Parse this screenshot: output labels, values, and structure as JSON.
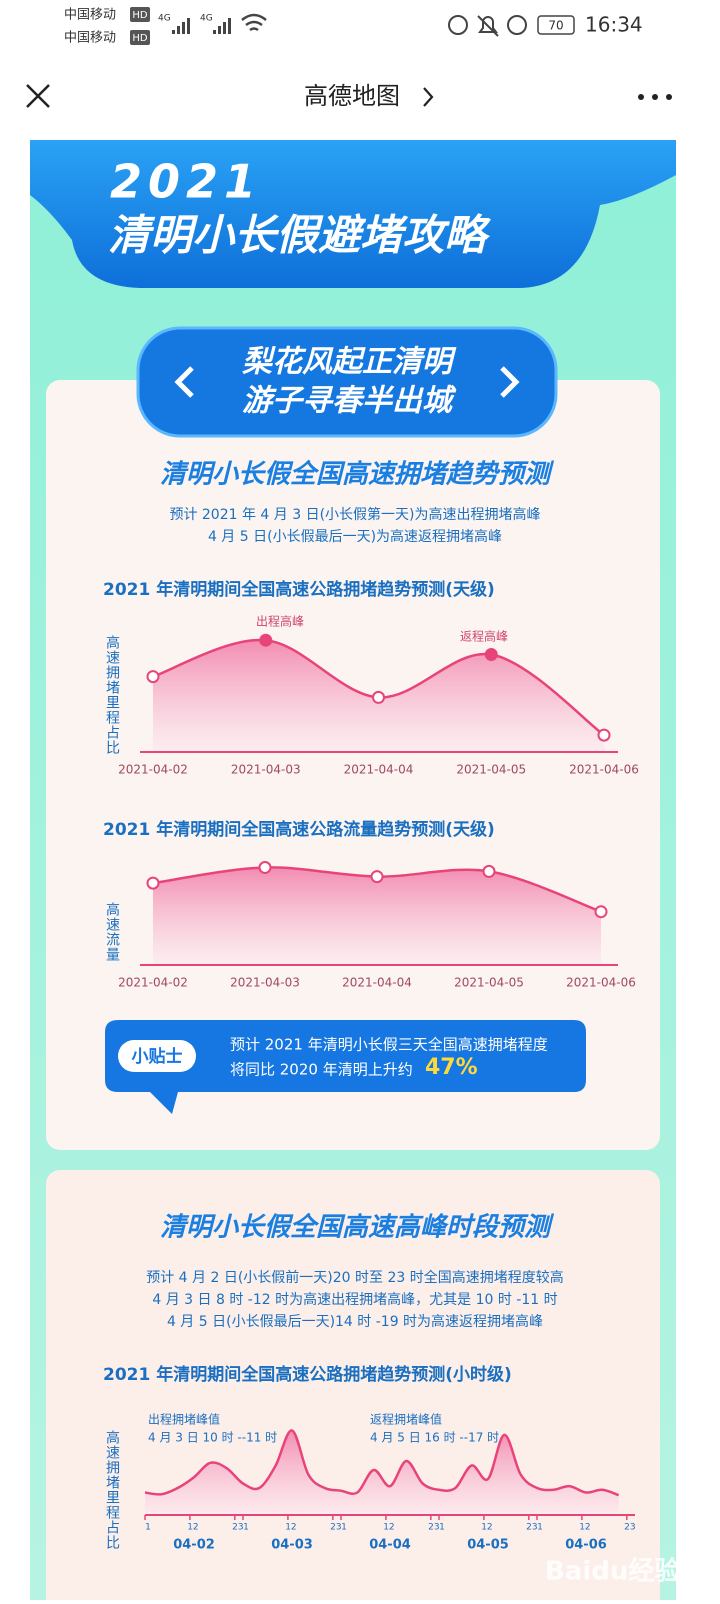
{
  "status_bar": {
    "carrier_1": "中国移动",
    "carrier_2": "中国移动",
    "hd": "HD",
    "network_1": "4G",
    "network_2": "4G",
    "battery": "70",
    "time": "16:34"
  },
  "nav": {
    "title": "高德地图"
  },
  "banner": {
    "year": "2021",
    "title": "清明小长假避堵攻略"
  },
  "slogan": [
    "梨花风起正清明",
    "游子寻春半出城"
  ],
  "section_1": {
    "heading": "清明小长假全国高速拥堵趋势预测",
    "lines": [
      "预计 2021 年 4 月 3 日(小长假第一天)为高速出程拥堵高峰",
      "4 月 5 日(小长假最后一天)为高速返程拥堵高峰"
    ],
    "charts": [
      {
        "type": "line",
        "title": "2021 年清明期间全国高速公路拥堵趋势预测(天级)",
        "ylabel": "高速拥堵里程占比",
        "categories": [
          "2021-04-02",
          "2021-04-03",
          "2021-04-04",
          "2021-04-05",
          "2021-04-06"
        ],
        "values": [
          58,
          86,
          42,
          75,
          13
        ],
        "ylim": [
          0,
          100
        ],
        "annotations": [
          "出程高峰",
          "返程高峰"
        ],
        "color": "#e8447a"
      },
      {
        "type": "line",
        "title": "2021 年清明期间全国高速公路流量趋势预测(天级)",
        "ylabel": "高速流量",
        "categories": [
          "2021-04-02",
          "2021-04-03",
          "2021-04-04",
          "2021-04-05",
          "2021-04-06"
        ],
        "values": [
          63,
          75,
          68,
          72,
          41
        ],
        "ylim": [
          0,
          100
        ],
        "color": "#e8447a"
      }
    ],
    "tip": {
      "badge": "小贴士",
      "lines": [
        "预计 2021 年清明小长假三天全国高速拥堵程度",
        "将同比 2020 年清明上升约"
      ],
      "highlight": "47%"
    }
  },
  "section_2": {
    "heading": "清明小长假全国高速高峰时段预测",
    "lines": [
      "预计 4 月 2 日(小长假前一天)20 时至 23 时全国高速拥堵程度较高",
      "4 月 3 日 8 时 -12 时为高速出程拥堵高峰，尤其是 10 时 -11 时",
      "4 月 5 日(小长假最后一天)14 时 -19 时为高速返程拥堵高峰"
    ],
    "chart": {
      "type": "line",
      "title": "2021 年清明期间全国高速公路拥堵趋势预测(小时级)",
      "ylabel": "高速拥堵里程占比",
      "annotations": [
        "出程拥堵峰值",
        "4 月 3 日 10 时 --11 时",
        "返程拥堵峰值",
        "4 月 5 日 16 时 --17 时"
      ],
      "x": [
        0,
        4,
        8,
        12,
        16,
        20,
        24,
        28,
        32,
        36,
        40,
        44,
        48,
        52,
        56,
        60,
        64,
        68,
        72,
        76,
        80,
        84,
        88,
        92,
        96,
        100,
        104,
        108,
        112,
        116
      ],
      "values": [
        25,
        23,
        30,
        42,
        58,
        52,
        35,
        30,
        55,
        94,
        45,
        30,
        27,
        25,
        50,
        32,
        60,
        35,
        28,
        30,
        55,
        40,
        89,
        45,
        30,
        28,
        32,
        25,
        28,
        22
      ],
      "xlim": [
        0,
        120
      ],
      "ylim": [
        0,
        100
      ],
      "xticks": [
        {
          "value": 0,
          "label": "1"
        },
        {
          "value": 11,
          "label": "12"
        },
        {
          "value": 22,
          "label": "23"
        },
        {
          "value": 24,
          "label": "1"
        },
        {
          "value": 35,
          "label": "12"
        },
        {
          "value": 46,
          "label": "23"
        },
        {
          "value": 48,
          "label": "1"
        },
        {
          "value": 59,
          "label": "12"
        },
        {
          "value": 70,
          "label": "23"
        },
        {
          "value": 72,
          "label": "1"
        },
        {
          "value": 83,
          "label": "12"
        },
        {
          "value": 94,
          "label": "23"
        },
        {
          "value": 96,
          "label": "1"
        },
        {
          "value": 107,
          "label": "12"
        },
        {
          "value": 118,
          "label": "23"
        }
      ],
      "day_labels": [
        "04-02",
        "04-03",
        "04-04",
        "04-05",
        "04-06"
      ],
      "color": "#e8447a"
    }
  },
  "watermark": "Baidu经验"
}
